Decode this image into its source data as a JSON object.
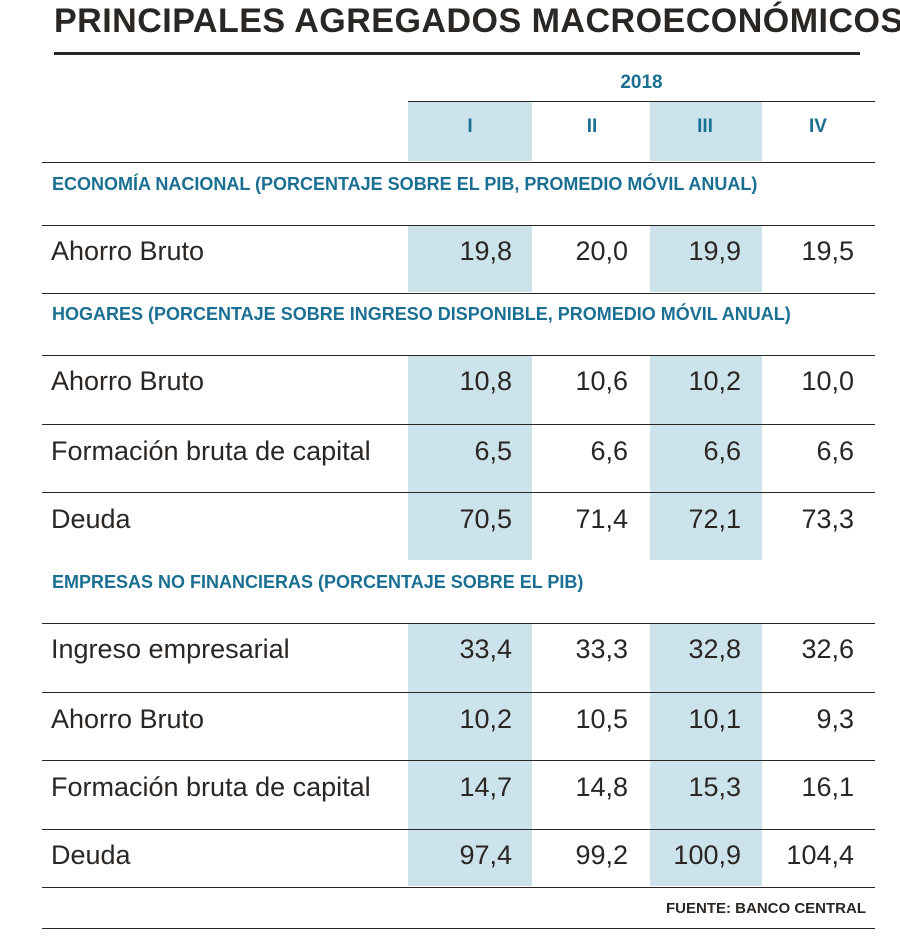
{
  "title": "PRINCIPALES AGREGADOS MACROECONÓMICOS",
  "year": "2018",
  "quarters": [
    "I",
    "II",
    "III",
    "IV"
  ],
  "sections": [
    {
      "heading": "ECONOMÍA NACIONAL (PORCENTAJE SOBRE EL PIB, PROMEDIO MÓVIL ANUAL)",
      "rows": [
        {
          "label": "Ahorro Bruto",
          "values": [
            "19,8",
            "20,0",
            "19,9",
            "19,5"
          ]
        }
      ]
    },
    {
      "heading": "HOGARES (PORCENTAJE SOBRE INGRESO DISPONIBLE, PROMEDIO MÓVIL ANUAL)",
      "rows": [
        {
          "label": "Ahorro Bruto",
          "values": [
            "10,8",
            "10,6",
            "10,2",
            "10,0"
          ]
        },
        {
          "label": "Formación bruta de capital",
          "values": [
            "6,5",
            "6,6",
            "6,6",
            "6,6"
          ]
        },
        {
          "label": "Deuda",
          "values": [
            "70,5",
            "71,4",
            "72,1",
            "73,3"
          ]
        }
      ]
    },
    {
      "heading": "EMPRESAS NO FINANCIERAS (PORCENTAJE SOBRE EL PIB)",
      "rows": [
        {
          "label": "Ingreso empresarial",
          "values": [
            "33,4",
            "33,3",
            "32,8",
            "32,6"
          ]
        },
        {
          "label": "Ahorro Bruto",
          "values": [
            "10,2",
            "10,5",
            "10,1",
            "9,3"
          ]
        },
        {
          "label": "Formación bruta de capital",
          "values": [
            "14,7",
            "14,8",
            "15,3",
            "16,1"
          ]
        },
        {
          "label": "Deuda",
          "values": [
            "97,4",
            "99,2",
            "100,9",
            "104,4"
          ]
        }
      ]
    }
  ],
  "source": "FUENTE: BANCO CENTRAL",
  "colors": {
    "accent": "#1a6f92",
    "highlight": "#cde3ec",
    "text": "#2a2623"
  }
}
